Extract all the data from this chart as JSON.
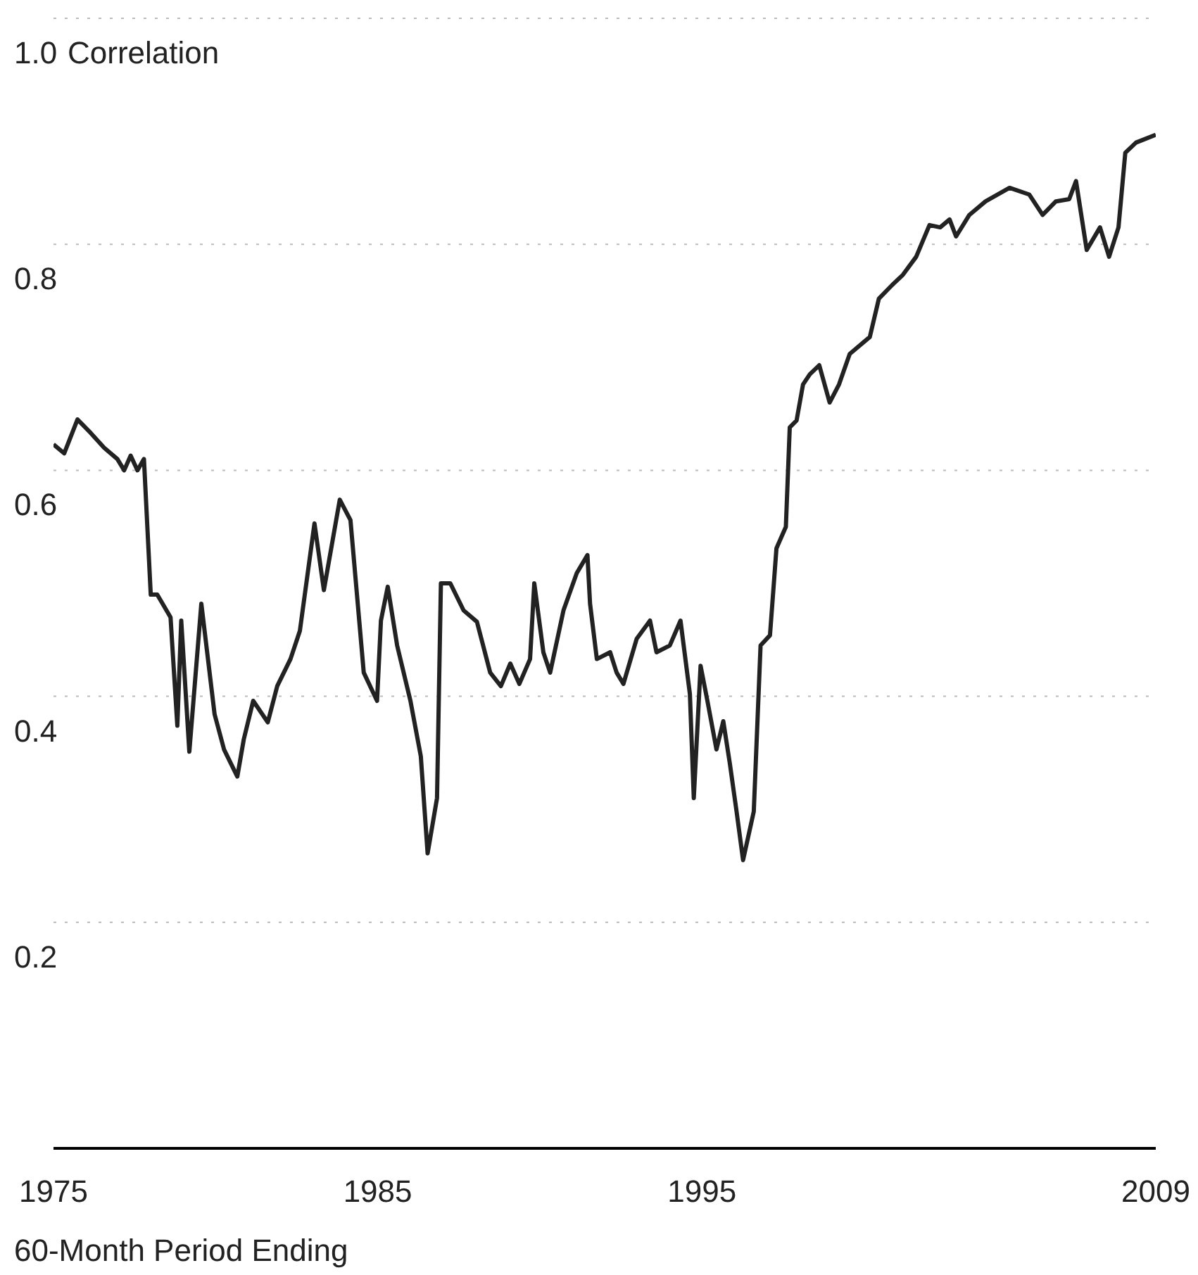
{
  "chart_data": {
    "type": "line",
    "ylabel": "Correlation",
    "xlabel": "60-Month Period Ending",
    "x": [
      1975.0,
      1975.33,
      1975.74,
      1976.15,
      1976.56,
      1976.97,
      1977.18,
      1977.38,
      1977.59,
      1977.79,
      1978.0,
      1978.2,
      1978.61,
      1978.82,
      1978.94,
      1979.19,
      1979.56,
      1979.97,
      1980.26,
      1980.67,
      1980.87,
      1981.16,
      1981.61,
      1981.9,
      1982.31,
      1982.6,
      1983.05,
      1983.34,
      1983.83,
      1984.16,
      1984.57,
      1984.98,
      1985.1,
      1985.31,
      1985.6,
      1986.01,
      1986.33,
      1986.54,
      1986.83,
      1986.95,
      1987.24,
      1987.65,
      1988.06,
      1988.47,
      1988.8,
      1989.09,
      1989.37,
      1989.7,
      1989.83,
      1990.11,
      1990.32,
      1990.73,
      1991.14,
      1991.47,
      1991.55,
      1991.76,
      1992.17,
      1992.37,
      1992.58,
      1992.99,
      1993.4,
      1993.6,
      1994.01,
      1994.34,
      1994.63,
      1994.75,
      1994.96,
      1995.17,
      1995.45,
      1995.66,
      1995.86,
      1996.07,
      1996.27,
      1996.6,
      1996.81,
      1997.1,
      1997.3,
      1997.59,
      1997.71,
      1997.92,
      1998.12,
      1998.33,
      1998.62,
      1998.94,
      1999.23,
      1999.56,
      2000.18,
      2000.46,
      2000.87,
      2001.2,
      2001.61,
      2002.02,
      2002.35,
      2002.64,
      2002.84,
      2003.25,
      2003.75,
      2004.49,
      2005.1,
      2005.51,
      2005.92,
      2006.33,
      2006.54,
      2006.87,
      2007.28,
      2007.56,
      2007.85,
      2008.06,
      2008.39,
      2009.0
    ],
    "series": [
      {
        "color": "#222222",
        "values": [
          0.623,
          0.615,
          0.645,
          0.633,
          0.62,
          0.61,
          0.6,
          0.613,
          0.6,
          0.61,
          0.49,
          0.49,
          0.47,
          0.374,
          0.467,
          0.351,
          0.482,
          0.384,
          0.353,
          0.329,
          0.362,
          0.396,
          0.377,
          0.409,
          0.433,
          0.458,
          0.553,
          0.494,
          0.574,
          0.556,
          0.421,
          0.396,
          0.467,
          0.497,
          0.445,
          0.396,
          0.347,
          0.261,
          0.31,
          0.5,
          0.5,
          0.476,
          0.466,
          0.421,
          0.409,
          0.429,
          0.411,
          0.433,
          0.5,
          0.439,
          0.421,
          0.476,
          0.509,
          0.525,
          0.482,
          0.433,
          0.439,
          0.421,
          0.411,
          0.451,
          0.467,
          0.439,
          0.445,
          0.467,
          0.402,
          0.31,
          0.427,
          0.396,
          0.353,
          0.378,
          0.341,
          0.298,
          0.255,
          0.298,
          0.445,
          0.454,
          0.531,
          0.55,
          0.638,
          0.644,
          0.676,
          0.685,
          0.693,
          0.66,
          0.676,
          0.703,
          0.718,
          0.752,
          0.764,
          0.773,
          0.789,
          0.817,
          0.815,
          0.822,
          0.807,
          0.826,
          0.838,
          0.85,
          0.844,
          0.826,
          0.838,
          0.84,
          0.856,
          0.795,
          0.815,
          0.789,
          0.815,
          0.881,
          0.89,
          0.897
        ]
      }
    ],
    "xlim": [
      1975,
      2009
    ],
    "xticks": [
      1975,
      1985,
      1995,
      2009
    ],
    "ylim": [
      0,
      1
    ],
    "yticks": [
      0.2,
      0.4,
      0.6,
      0.8,
      {
        "value": 1.0,
        "label": "1.0"
      }
    ],
    "grid": "y",
    "marker": "none",
    "line_style": "solid"
  }
}
